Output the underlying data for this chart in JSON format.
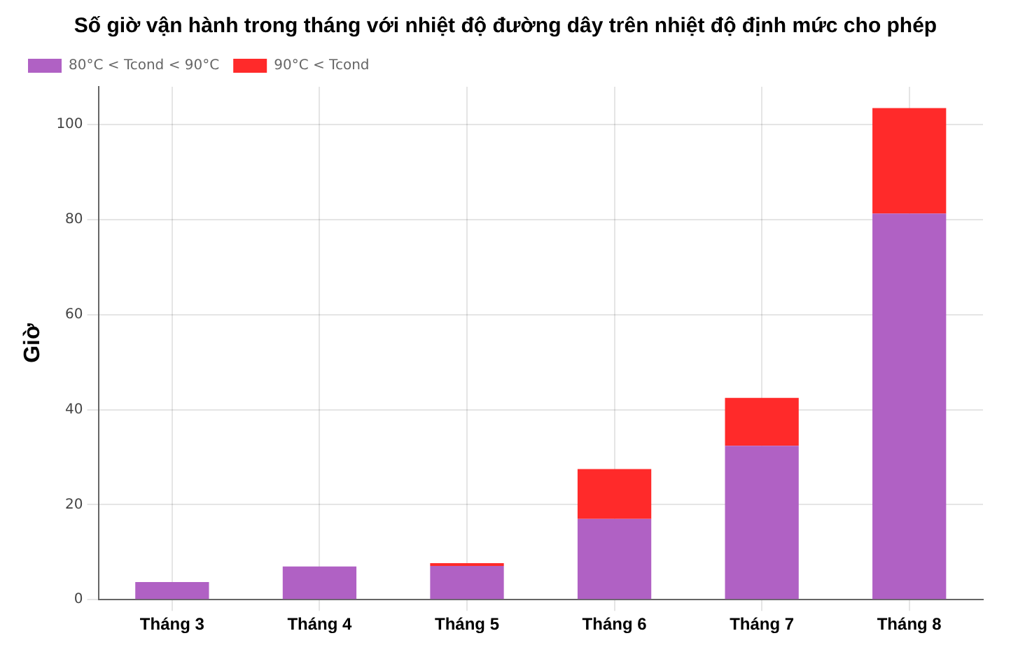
{
  "chart_data": {
    "type": "bar",
    "title": "Số giờ vận hành trong tháng với nhiệt độ đường dây trên nhiệt độ định mức cho phép",
    "ylabel": "Giờ",
    "categories": [
      "Tháng 3",
      "Tháng 4",
      "Tháng 5",
      "Tháng 6",
      "Tháng 7",
      "Tháng 8"
    ],
    "series": [
      {
        "name": "80°C < Tcond < 90°C",
        "color": "#b061c4",
        "values": [
          3.7,
          7.0,
          7.1,
          17.0,
          32.4,
          81.3
        ]
      },
      {
        "name": "90°C < Tcond",
        "color": "#ff2a2a",
        "values": [
          0,
          0,
          0.6,
          10.5,
          10.1,
          22.2
        ]
      }
    ],
    "stacked": true,
    "ylim": [
      0,
      108
    ],
    "yticks": [
      0,
      20,
      40,
      60,
      80,
      100
    ],
    "grid": true,
    "legend": "top left"
  }
}
